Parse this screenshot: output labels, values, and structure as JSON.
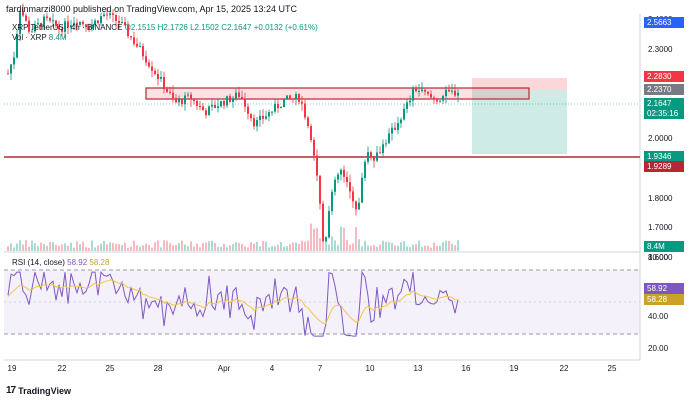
{
  "header": {
    "text": "fardinmarzi8000 published on TradingView.com, Apr 15, 2025 13:24 UTC"
  },
  "legend": {
    "symbol": "XRP",
    "pair": "TetherUS · 4h · BINANCE",
    "open": "O2.1515",
    "high": "H2.1726",
    "low": "L2.1502",
    "close": "C2.1647",
    "change": "+0.0132 (+0.61%)",
    "vol_label": "Vol · XRP",
    "vol_value": "8.4M"
  },
  "rsi_legend": {
    "label": "RSI (14, close)",
    "v1": "58.92",
    "v2": "58.28"
  },
  "price_axis": [
    "2.4000",
    "2.3000",
    "2.2000",
    "2.1000",
    "2.0000",
    "1.9000",
    "1.8000",
    "1.7000",
    "1.6000"
  ],
  "rsi_axis": [
    "80.00",
    "40.00",
    "20.00"
  ],
  "price_tags": [
    {
      "text": "2.5663",
      "color": "#2962ff"
    },
    {
      "text": "2.2830",
      "color": "#f23645"
    },
    {
      "text": "2.2370",
      "color": "#787b86"
    },
    {
      "text": "2.1647",
      "color": "#089981"
    },
    {
      "text": "02:35:16",
      "color": "#089981"
    },
    {
      "text": "1.9346",
      "color": "#089981"
    },
    {
      "text": "1.9289",
      "color": "#b22833"
    },
    {
      "text": "8.4M",
      "color": "#089981"
    }
  ],
  "rsi_tags": [
    {
      "text": "58.92",
      "color": "#7e57c2"
    },
    {
      "text": "58.28",
      "color": "#c9a227"
    }
  ],
  "x_axis": [
    "19",
    "22",
    "25",
    "28",
    "Apr",
    "4",
    "7",
    "10",
    "13",
    "16",
    "19",
    "22",
    "25"
  ],
  "footer": {
    "brand": "TradingView"
  },
  "colors": {
    "up": "#089981",
    "down": "#f23645",
    "rsi": "#7e57c2",
    "rsi_ma": "#f2c744",
    "support": "#b22833"
  }
}
